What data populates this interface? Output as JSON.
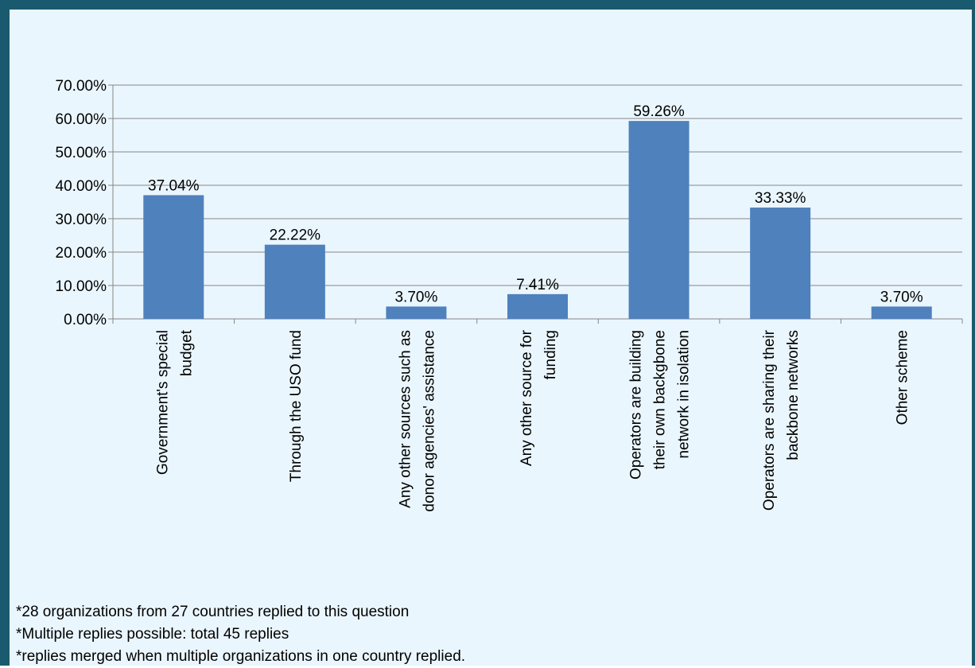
{
  "chart_data": {
    "type": "bar",
    "categories": [
      [
        "Government's special",
        "budget"
      ],
      [
        "Through the USO fund"
      ],
      [
        "Any other sources such as",
        "donor agencies' assistance"
      ],
      [
        "Any other source for",
        "funding"
      ],
      [
        "Operators are building",
        "their own backgbone",
        "network in isolation"
      ],
      [
        "Operators are sharing their",
        "backbone networks"
      ],
      [
        "Other scheme"
      ]
    ],
    "values": [
      37.04,
      22.22,
      3.7,
      7.41,
      59.26,
      33.33,
      3.7
    ],
    "data_labels": [
      "37.04%",
      "22.22%",
      "3.70%",
      "7.41%",
      "59.26%",
      "33.33%",
      "3.70%"
    ],
    "ylim": [
      0,
      70
    ],
    "yticks": [
      0,
      10,
      20,
      30,
      40,
      50,
      60,
      70
    ],
    "ytick_labels": [
      "0.00%",
      "10.00%",
      "20.00%",
      "30.00%",
      "40.00%",
      "50.00%",
      "60.00%",
      "70.00%"
    ],
    "grid": true,
    "bar_color": "#4f81bd",
    "title": "",
    "xlabel": "",
    "ylabel": ""
  },
  "notes": [
    "*28 organizations from 27 countries replied to this question",
    "*Multiple replies possible: total 45 replies",
    "*replies merged when multiple organizations in one country replied."
  ],
  "colors": {
    "frame": "#1a5a6e",
    "background": "#eaf6fd",
    "gridline": "#878787"
  }
}
